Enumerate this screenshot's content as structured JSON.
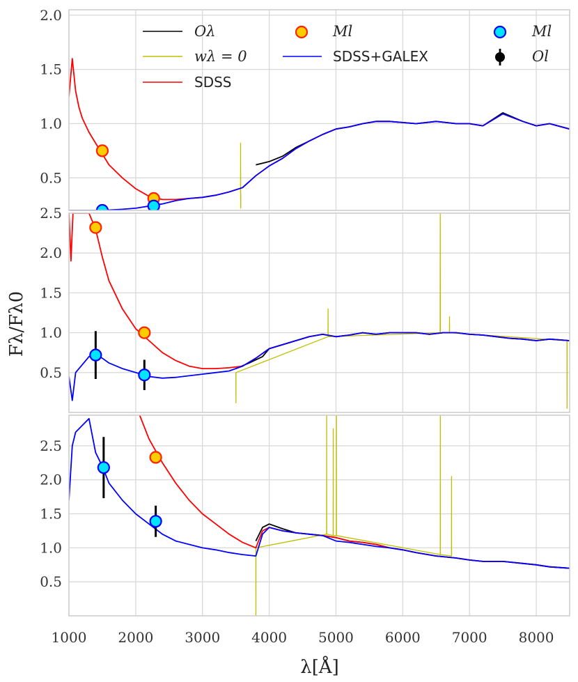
{
  "figure": {
    "xlabel": "λ[Å]",
    "ylabel": "Fλ/Fλ0",
    "x_ticks": [
      "1000",
      "2000",
      "3000",
      "4000",
      "5000",
      "6000",
      "7000",
      "8000"
    ]
  },
  "legend": {
    "o_lambda": "Oλ",
    "w_lambda": "wλ = 0",
    "sdss": "SDSS",
    "m_l_orange": "Ml",
    "sdss_galex": "SDSS+GALEX",
    "m_l_cyan": "Ml",
    "o_l": "Ol"
  },
  "colors": {
    "observed": "#000000",
    "masked": "#bfbf00",
    "sdss_model": "#ff0000",
    "sdss_galex_model": "#0000ff",
    "m_l_sdss_face": "#ffcc00",
    "m_l_sdss_edge": "#ff2200",
    "m_l_sdss_galex_face": "#00e5ff",
    "m_l_sdss_galex_edge": "#0000ff",
    "grid": "#d9d9d9"
  },
  "chart_data": [
    {
      "type": "line",
      "panel": "top",
      "ylim": [
        0.2,
        2.05
      ],
      "y_ticks": [
        "0.5",
        "1.0",
        "1.5",
        "2.0"
      ],
      "xlim": [
        1000,
        8500
      ],
      "series": [
        {
          "name": "Oλ",
          "x": [
            3800,
            4000,
            4200,
            4400,
            4600,
            4800,
            5000,
            5200,
            5400,
            5600,
            5800,
            6000,
            6200,
            6500,
            6800,
            7000,
            7200,
            7500,
            7800,
            8000,
            8200,
            8500
          ],
          "y": [
            0.62,
            0.65,
            0.7,
            0.78,
            0.84,
            0.9,
            0.95,
            0.97,
            1.0,
            1.02,
            1.02,
            1.01,
            1.0,
            1.02,
            1.0,
            1.0,
            0.98,
            1.1,
            1.02,
            0.98,
            1.0,
            0.95
          ]
        },
        {
          "name": "wλ = 0",
          "x": [
            3570,
            3571,
            3572,
            3573,
            3574
          ],
          "y": [
            0.35,
            0.82,
            0.35,
            0.22,
            0.35
          ]
        },
        {
          "name": "SDSS",
          "x": [
            1000,
            1050,
            1100,
            1150,
            1200,
            1300,
            1400,
            1500,
            1600,
            1800,
            2000,
            2200,
            2400,
            2600,
            2800,
            3000,
            3200,
            3400,
            3600,
            3800,
            4000,
            4200,
            4400,
            4600,
            4800,
            5000,
            5200,
            5400,
            5600,
            5800,
            6000,
            6200,
            6500,
            6800,
            7000,
            7200,
            7500,
            7800,
            8000,
            8200,
            8500
          ],
          "y": [
            1.25,
            1.6,
            1.3,
            1.15,
            1.05,
            0.92,
            0.82,
            0.72,
            0.62,
            0.5,
            0.4,
            0.33,
            0.3,
            0.3,
            0.31,
            0.32,
            0.34,
            0.37,
            0.41,
            0.52,
            0.61,
            0.68,
            0.77,
            0.84,
            0.9,
            0.95,
            0.97,
            1.0,
            1.02,
            1.02,
            1.01,
            1.0,
            1.02,
            1.0,
            1.0,
            0.98,
            1.09,
            1.02,
            0.98,
            1.0,
            0.95
          ]
        },
        {
          "name": "SDSS+GALEX",
          "x": [
            1000,
            1500,
            1800,
            2000,
            2200,
            2400,
            2600,
            2800,
            3000,
            3200,
            3400,
            3600,
            3800,
            4000,
            4200,
            4400,
            4600,
            4800,
            5000,
            5200,
            5400,
            5600,
            5800,
            6000,
            6200,
            6500,
            6800,
            7000,
            7200,
            7500,
            7800,
            8000,
            8200,
            8500
          ],
          "y": [
            0.2,
            0.2,
            0.21,
            0.22,
            0.24,
            0.26,
            0.29,
            0.31,
            0.32,
            0.34,
            0.37,
            0.41,
            0.52,
            0.61,
            0.68,
            0.77,
            0.84,
            0.9,
            0.95,
            0.97,
            1.0,
            1.02,
            1.02,
            1.01,
            1.0,
            1.02,
            1.0,
            1.0,
            0.98,
            1.09,
            1.02,
            0.98,
            1.0,
            0.95
          ]
        }
      ],
      "markers": {
        "m_l_sdss": [
          [
            1500,
            0.75
          ],
          [
            2270,
            0.31
          ]
        ],
        "m_l_sdss_galex": [
          [
            1500,
            0.2
          ],
          [
            2270,
            0.24
          ]
        ],
        "o_l": []
      }
    },
    {
      "type": "line",
      "panel": "middle",
      "ylim": [
        0.0,
        2.5
      ],
      "y_ticks": [
        "0.5",
        "1.0",
        "1.5",
        "2.0",
        "2.5"
      ],
      "xlim": [
        1000,
        8500
      ],
      "series": [
        {
          "name": "Oλ",
          "x": [
            3500,
            3700,
            3900,
            4000,
            4200,
            4400,
            4600,
            4800,
            5000,
            5200,
            5400,
            5600,
            5800,
            6000,
            6200,
            6400,
            6600,
            6800,
            7000,
            7200,
            7400,
            7600,
            7800,
            8000,
            8200,
            8500
          ],
          "y": [
            0.55,
            0.62,
            0.7,
            0.8,
            0.85,
            0.9,
            0.95,
            0.98,
            0.95,
            0.97,
            1.0,
            0.98,
            1.0,
            1.0,
            1.0,
            0.98,
            1.0,
            1.0,
            0.98,
            0.97,
            0.95,
            0.93,
            0.92,
            0.9,
            0.92,
            0.9
          ]
        },
        {
          "name": "wλ = 0",
          "x": [
            3500,
            3501,
            3502,
            4880,
            4881,
            4882,
            6560,
            6562,
            6564,
            6700,
            6701,
            6702,
            8460,
            8461,
            8462
          ],
          "y": [
            0.5,
            0.12,
            0.5,
            0.95,
            1.3,
            0.95,
            1.0,
            2.5,
            1.0,
            1.0,
            1.2,
            1.0,
            0.9,
            0.05,
            0.9
          ]
        },
        {
          "name": "SDSS",
          "x": [
            1000,
            1030,
            1060,
            1100,
            1200,
            1300,
            1400,
            1500,
            1600,
            1800,
            2000,
            2200,
            2400,
            2600,
            2800,
            3000,
            3200,
            3400,
            3600,
            3800,
            4000,
            4200,
            4400,
            4600,
            4800,
            5000,
            5200,
            5400,
            5600,
            5800,
            6000,
            6200,
            6400,
            6600,
            6800,
            7000,
            7200,
            7400,
            7600,
            7800,
            8000,
            8200,
            8500
          ],
          "y": [
            2.5,
            1.9,
            2.5,
            2.5,
            2.5,
            2.5,
            2.3,
            1.95,
            1.65,
            1.3,
            1.05,
            0.9,
            0.75,
            0.65,
            0.58,
            0.55,
            0.55,
            0.56,
            0.58,
            0.68,
            0.8,
            0.85,
            0.9,
            0.95,
            0.98,
            0.95,
            0.97,
            1.0,
            0.98,
            1.0,
            1.0,
            1.0,
            0.98,
            1.0,
            1.0,
            0.98,
            0.97,
            0.95,
            0.93,
            0.92,
            0.9,
            0.92,
            0.9
          ]
        },
        {
          "name": "SDSS+GALEX",
          "x": [
            1000,
            1050,
            1100,
            1200,
            1300,
            1400,
            1500,
            1600,
            1800,
            2000,
            2200,
            2400,
            2600,
            2800,
            3000,
            3200,
            3400,
            3600,
            3800,
            4000,
            4200,
            4400,
            4600,
            4800,
            5000,
            5200,
            5400,
            5600,
            5800,
            6000,
            6200,
            6400,
            6600,
            6800,
            7000,
            7200,
            7400,
            7600,
            7800,
            8000,
            8200,
            8500
          ],
          "y": [
            0.45,
            0.15,
            0.5,
            0.6,
            0.7,
            0.72,
            0.68,
            0.62,
            0.55,
            0.5,
            0.45,
            0.43,
            0.44,
            0.46,
            0.48,
            0.5,
            0.52,
            0.58,
            0.68,
            0.8,
            0.85,
            0.9,
            0.95,
            0.98,
            0.95,
            0.97,
            1.0,
            0.98,
            1.0,
            1.0,
            1.0,
            0.98,
            1.0,
            1.0,
            0.98,
            0.97,
            0.95,
            0.93,
            0.92,
            0.9,
            0.92,
            0.9
          ]
        }
      ],
      "markers": {
        "m_l_sdss": [
          [
            1400,
            2.32
          ],
          [
            2130,
            1.0
          ]
        ],
        "m_l_sdss_galex": [
          [
            1400,
            0.72
          ],
          [
            2130,
            0.47
          ]
        ],
        "o_l": [
          [
            1400,
            0.72,
            0.3
          ],
          [
            2130,
            0.47,
            0.19
          ]
        ]
      }
    },
    {
      "type": "line",
      "panel": "bottom",
      "ylim": [
        0.0,
        2.95
      ],
      "y_ticks": [
        "0.5",
        "1.0",
        "1.5",
        "2.0",
        "2.5"
      ],
      "xlim": [
        1000,
        8500
      ],
      "series": [
        {
          "name": "Oλ",
          "x": [
            3800,
            3900,
            4000,
            4200,
            4400,
            4600,
            4800,
            5000,
            5200,
            5400,
            5600,
            5800,
            6000,
            6200,
            6500,
            6800,
            7000,
            7200,
            7500,
            7800,
            8000,
            8200,
            8500
          ],
          "y": [
            1.1,
            1.3,
            1.35,
            1.28,
            1.22,
            1.2,
            1.18,
            1.15,
            1.1,
            1.08,
            1.05,
            1.0,
            0.97,
            0.93,
            0.88,
            0.85,
            0.82,
            0.8,
            0.8,
            0.77,
            0.75,
            0.72,
            0.7
          ]
        },
        {
          "name": "wλ = 0",
          "x": [
            3800,
            3801,
            3802,
            4860,
            4861,
            4862,
            4958,
            4959,
            4960,
            5006,
            5007,
            5008,
            6562,
            6563,
            6564,
            6730,
            6731,
            6732
          ],
          "y": [
            1.0,
            0.0,
            1.0,
            1.2,
            2.95,
            1.2,
            1.18,
            2.75,
            1.18,
            1.18,
            2.95,
            1.18,
            0.9,
            2.95,
            0.9,
            0.88,
            2.05,
            0.88
          ]
        },
        {
          "name": "SDSS",
          "x": [
            2060,
            2200,
            2400,
            2600,
            2800,
            3000,
            3200,
            3400,
            3600,
            3800,
            3900,
            4000,
            4200,
            4400,
            4600,
            4800,
            5000,
            5200,
            5400,
            5600,
            5800,
            6000,
            6200,
            6500,
            6800,
            7000,
            7200,
            7500,
            7800,
            8000,
            8200,
            8500
          ],
          "y": [
            2.95,
            2.6,
            2.25,
            1.95,
            1.7,
            1.5,
            1.35,
            1.2,
            1.08,
            1.0,
            1.25,
            1.3,
            1.25,
            1.22,
            1.2,
            1.18,
            1.15,
            1.1,
            1.08,
            1.05,
            1.0,
            0.97,
            0.93,
            0.88,
            0.85,
            0.82,
            0.8,
            0.8,
            0.77,
            0.75,
            0.72,
            0.7
          ]
        },
        {
          "name": "SDSS+GALEX",
          "x": [
            1000,
            1050,
            1100,
            1200,
            1300,
            1400,
            1500,
            1600,
            1800,
            2000,
            2200,
            2400,
            2600,
            2800,
            3000,
            3200,
            3400,
            3600,
            3800,
            3900,
            4000,
            4200,
            4400,
            4600,
            4800,
            5000,
            5200,
            5400,
            5600,
            5800,
            6000,
            6200,
            6500,
            6800,
            7000,
            7200,
            7500,
            7800,
            8000,
            8200,
            8500
          ],
          "y": [
            1.7,
            2.5,
            2.7,
            2.8,
            2.9,
            2.4,
            2.2,
            1.95,
            1.7,
            1.5,
            1.35,
            1.2,
            1.1,
            1.05,
            1.0,
            0.97,
            0.93,
            0.9,
            0.88,
            1.2,
            1.3,
            1.25,
            1.22,
            1.2,
            1.18,
            1.1,
            1.08,
            1.05,
            1.02,
            1.0,
            0.97,
            0.93,
            0.88,
            0.85,
            0.82,
            0.8,
            0.8,
            0.77,
            0.75,
            0.72,
            0.7
          ]
        }
      ],
      "markers": {
        "m_l_sdss": [
          [
            2300,
            2.33
          ]
        ],
        "m_l_sdss_galex": [
          [
            1520,
            2.18
          ],
          [
            2300,
            1.39
          ]
        ],
        "o_l": [
          [
            1520,
            2.18,
            0.45
          ],
          [
            2300,
            1.39,
            0.23
          ]
        ]
      }
    }
  ]
}
